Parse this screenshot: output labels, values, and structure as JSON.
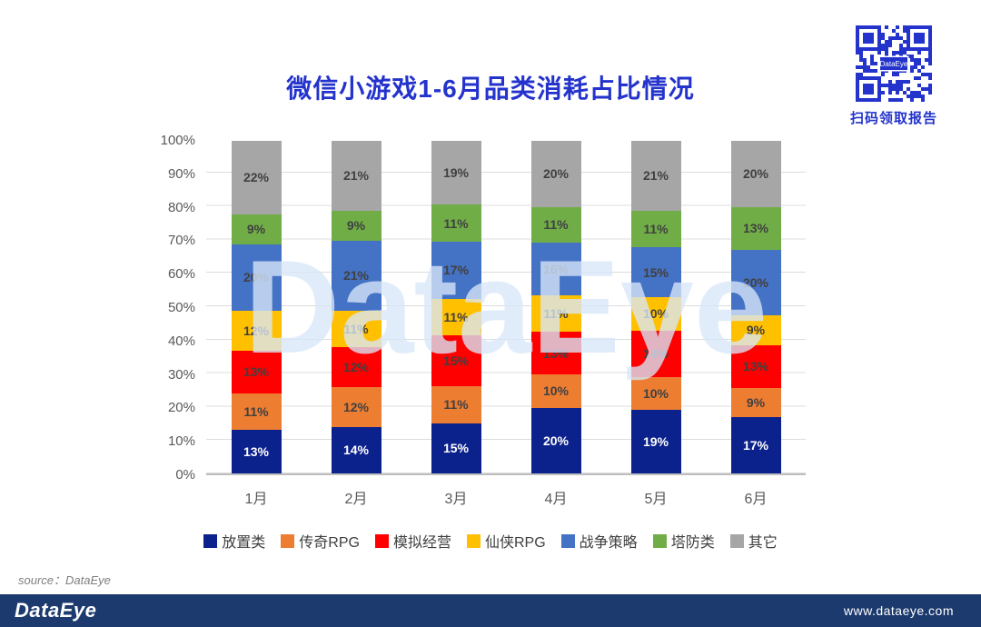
{
  "page": {
    "title": "微信小游戏1-6月品类消耗占比情况",
    "title_color": "#2333CC",
    "qr_caption": "扫码领取报告",
    "qr_color": "#2333CC",
    "watermark": "DataEye",
    "source_note": "source：DataEye"
  },
  "footer": {
    "logo": "DataEye",
    "url": "www.dataeye.com",
    "background_color": "#1C3A6E"
  },
  "chart_data": {
    "type": "bar",
    "stacked": true,
    "title": "微信小游戏1-6月品类消耗占比情况",
    "categories": [
      "1月",
      "2月",
      "3月",
      "4月",
      "5月",
      "6月"
    ],
    "series": [
      {
        "name": "放置类",
        "color": "#0B218C",
        "label_color": "#FFFFFF",
        "values": [
          13,
          14,
          15,
          20,
          19,
          17
        ]
      },
      {
        "name": "传奇RPG",
        "color": "#ED7D31",
        "label_color": "#404040",
        "values": [
          11,
          12,
          11,
          10,
          10,
          9
        ]
      },
      {
        "name": "模拟经营",
        "color": "#FE0000",
        "label_color": "#404040",
        "values": [
          13,
          12,
          15,
          13,
          14,
          13
        ]
      },
      {
        "name": "仙侠RPG",
        "color": "#FFC000",
        "label_color": "#404040",
        "values": [
          12,
          11,
          11,
          11,
          10,
          9
        ]
      },
      {
        "name": "战争策略",
        "color": "#4472C4",
        "label_color": "#404040",
        "values": [
          20,
          21,
          17,
          16,
          15,
          20
        ]
      },
      {
        "name": "塔防类",
        "color": "#70AD47",
        "label_color": "#404040",
        "values": [
          9,
          9,
          11,
          11,
          11,
          13
        ]
      },
      {
        "name": "其它",
        "color": "#A6A6A6",
        "label_color": "#404040",
        "values": [
          22,
          21,
          19,
          20,
          21,
          20
        ]
      }
    ],
    "y_ticks": [
      "0%",
      "10%",
      "20%",
      "30%",
      "40%",
      "50%",
      "60%",
      "70%",
      "80%",
      "90%",
      "100%"
    ],
    "ylim": [
      0,
      100
    ],
    "unit": "%",
    "grid": true,
    "legend_position": "bottom"
  }
}
